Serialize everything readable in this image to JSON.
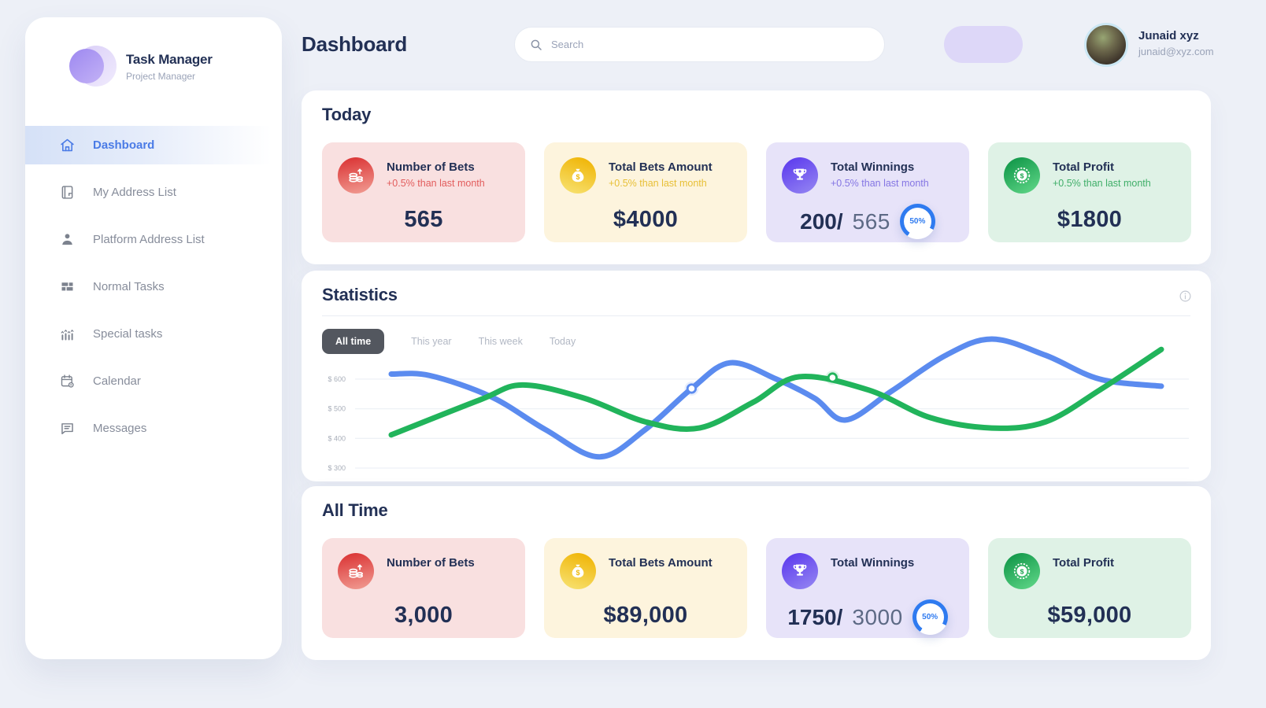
{
  "sidebar": {
    "brand": {
      "title": "Task Manager",
      "subtitle": "Project Manager"
    },
    "items": [
      {
        "label": "Dashboard",
        "icon": "home-icon",
        "active": true
      },
      {
        "label": "My Address List",
        "icon": "address-book-icon",
        "active": false
      },
      {
        "label": "Platform Address List",
        "icon": "person-icon",
        "active": false
      },
      {
        "label": "Normal Tasks",
        "icon": "grid-icon",
        "active": false
      },
      {
        "label": "Special tasks",
        "icon": "chart-bars-icon",
        "active": false
      },
      {
        "label": "Calendar",
        "icon": "calendar-icon",
        "active": false
      },
      {
        "label": "Messages",
        "icon": "message-icon",
        "active": false
      }
    ]
  },
  "header": {
    "title": "Dashboard",
    "search": {
      "placeholder": "Search",
      "value": "",
      "icon": "search-icon"
    },
    "user": {
      "name": "Junaid xyz",
      "email": "junaid@xyz.com"
    }
  },
  "sections": {
    "today": {
      "title": "Today",
      "cards": [
        {
          "title": "Number of Bets",
          "subtitle": "+0.5% than last month",
          "value": "565",
          "theme": "red",
          "icon": "coins-up-icon"
        },
        {
          "title": "Total Bets Amount",
          "subtitle": "+0.5% than last month",
          "value": "$4000",
          "theme": "yellow",
          "icon": "money-bag-icon"
        },
        {
          "title": "Total Winnings",
          "subtitle": "+0.5% than last month",
          "value_main": "200/",
          "value_sub": "565",
          "progress": "50%",
          "theme": "purple",
          "icon": "trophy-icon"
        },
        {
          "title": "Total Profit",
          "subtitle": "+0.5% than last month",
          "value": "$1800",
          "theme": "green",
          "icon": "coin-dollar-icon"
        }
      ]
    },
    "statistics": {
      "title": "Statistics",
      "tabs": [
        {
          "label": "All time",
          "active": true
        },
        {
          "label": "This year",
          "active": false
        },
        {
          "label": "This week",
          "active": false
        },
        {
          "label": "Today",
          "active": false
        }
      ]
    },
    "all_time": {
      "title": "All Time",
      "cards": [
        {
          "title": "Number of Bets",
          "value": "3,000",
          "theme": "red",
          "icon": "coins-up-icon"
        },
        {
          "title": "Total Bets Amount",
          "value": "$89,000",
          "theme": "yellow",
          "icon": "money-bag-icon"
        },
        {
          "title": "Total Winnings",
          "value_main": "1750/",
          "value_sub": "3000",
          "progress": "50%",
          "theme": "purple",
          "icon": "trophy-icon"
        },
        {
          "title": "Total Profit",
          "value": "$59,000",
          "theme": "green",
          "icon": "coin-dollar-icon"
        }
      ]
    }
  },
  "chart_data": {
    "type": "line",
    "title": "Statistics",
    "xlabel": "",
    "ylabel": "",
    "y_ticks": [
      300,
      400,
      500,
      600
    ],
    "y_tick_prefix": "$ ",
    "y_range": [
      300,
      740
    ],
    "grid": true,
    "legend": "none",
    "series": [
      {
        "name": "series-blue",
        "color": "#5b8bef",
        "points": [
          [
            0,
            617
          ],
          [
            0.05,
            612
          ],
          [
            0.13,
            540
          ],
          [
            0.2,
            430
          ],
          [
            0.27,
            338
          ],
          [
            0.33,
            430
          ],
          [
            0.39,
            568
          ],
          [
            0.44,
            655
          ],
          [
            0.5,
            600
          ],
          [
            0.55,
            535
          ],
          [
            0.59,
            462
          ],
          [
            0.65,
            560
          ],
          [
            0.72,
            680
          ],
          [
            0.78,
            735
          ],
          [
            0.85,
            680
          ],
          [
            0.92,
            600
          ],
          [
            1,
            576
          ]
        ]
      },
      {
        "name": "series-green",
        "color": "#21b45b",
        "points": [
          [
            0,
            412
          ],
          [
            0.115,
            530
          ],
          [
            0.17,
            580
          ],
          [
            0.25,
            536
          ],
          [
            0.33,
            456
          ],
          [
            0.4,
            435
          ],
          [
            0.47,
            522
          ],
          [
            0.53,
            608
          ],
          [
            0.62,
            563
          ],
          [
            0.7,
            470
          ],
          [
            0.78,
            435
          ],
          [
            0.85,
            456
          ],
          [
            0.92,
            563
          ],
          [
            1,
            700
          ]
        ]
      }
    ],
    "markers": [
      {
        "series": 0,
        "t": 0.39,
        "value": 568
      },
      {
        "series": 1,
        "t": 0.573,
        "value": 605
      }
    ]
  },
  "colors": {
    "page_bg": "#edf0f7",
    "accent_blue": "#4a7be6",
    "navy_text": "#223055",
    "chart_blue": "#5b8bef",
    "chart_green": "#21b45b",
    "ring_blue": "#2f7bf0",
    "card_red_bg": "#f9e0e0",
    "card_yellow_bg": "#fdf4dd",
    "card_purple_bg": "#e7e3f9",
    "card_green_bg": "#dff2e6",
    "header_pill": "#ddd7f8",
    "active_tab_bg": "#53575f"
  }
}
